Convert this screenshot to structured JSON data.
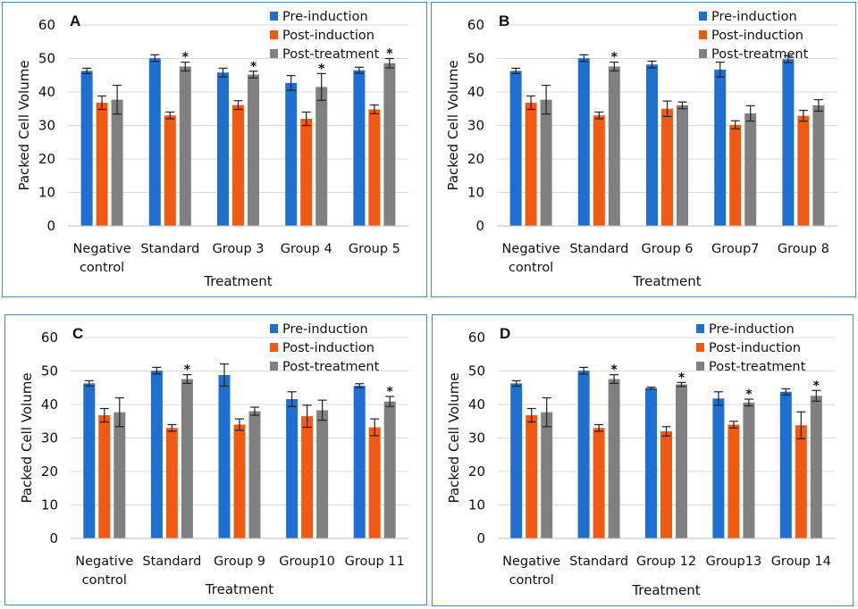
{
  "colors": {
    "pre": "#1f6fd1",
    "post_ind": "#f15a13",
    "post_treat": "#808080",
    "border": "#4f88a8",
    "grid": "#d9d9d9"
  },
  "chart_data": [
    {
      "type": "bar",
      "panel": "A",
      "ylabel": "Packed Cell Volume",
      "xlabel": "Treatment",
      "ylim": [
        0,
        60
      ],
      "yticks": [
        "0",
        "10",
        "20",
        "30",
        "40",
        "50",
        "60"
      ],
      "grid": true,
      "legend": "top-right",
      "categories": [
        [
          "Negative",
          "control"
        ],
        [
          "Standard"
        ],
        [
          "Group 3"
        ],
        [
          "Group 4"
        ],
        [
          "Group 5"
        ]
      ],
      "series": [
        {
          "name": "Pre-induction",
          "values": [
            46.3,
            50.1,
            45.8,
            42.7,
            46.5
          ],
          "errors": [
            0.8,
            1.0,
            1.3,
            2.2,
            0.9
          ]
        },
        {
          "name": "Post-induction",
          "values": [
            36.8,
            33.0,
            36.1,
            32.0,
            34.8
          ],
          "errors": [
            2.0,
            1.0,
            1.3,
            2.0,
            1.3
          ]
        },
        {
          "name": "Post-treatment",
          "values": [
            37.7,
            47.6,
            45.2,
            41.5,
            48.6
          ],
          "errors": [
            4.3,
            1.3,
            1.0,
            4.0,
            1.4
          ],
          "significance": [
            "",
            "*",
            "*",
            "*",
            "*"
          ]
        }
      ]
    },
    {
      "type": "bar",
      "panel": "B",
      "ylabel": "Packed Cell Volume",
      "xlabel": "Treatment",
      "ylim": [
        0,
        60
      ],
      "yticks": [
        "0",
        "10",
        "20",
        "30",
        "40",
        "50",
        "60"
      ],
      "grid": true,
      "legend": "top-right",
      "categories": [
        [
          "Negative",
          "control"
        ],
        [
          "Standard"
        ],
        [
          "Group 6"
        ],
        [
          "Group7"
        ],
        [
          "Group 8"
        ]
      ],
      "series": [
        {
          "name": "Pre-induction",
          "values": [
            46.3,
            50.1,
            48.2,
            46.7,
            49.8
          ],
          "errors": [
            0.8,
            1.0,
            1.0,
            2.2,
            1.0
          ]
        },
        {
          "name": "Post-induction",
          "values": [
            36.8,
            33.0,
            35.0,
            30.2,
            32.9
          ],
          "errors": [
            2.0,
            1.0,
            2.3,
            1.2,
            1.6
          ]
        },
        {
          "name": "Post-treatment",
          "values": [
            37.7,
            47.6,
            36.0,
            33.6,
            36.0
          ],
          "errors": [
            4.3,
            1.3,
            1.0,
            2.3,
            1.7
          ],
          "significance": [
            "",
            "*",
            "",
            "",
            ""
          ]
        }
      ]
    },
    {
      "type": "bar",
      "panel": "C",
      "ylabel": "Packed Cell Volume",
      "xlabel": "Treatment",
      "ylim": [
        0,
        60
      ],
      "yticks": [
        "0",
        "10",
        "20",
        "30",
        "40",
        "50",
        "60"
      ],
      "grid": true,
      "legend": "top-right",
      "categories": [
        [
          "Negative",
          "control"
        ],
        [
          "Standard"
        ],
        [
          "Group 9"
        ],
        [
          "Group10"
        ],
        [
          "Group 11"
        ]
      ],
      "series": [
        {
          "name": "Pre-induction",
          "values": [
            46.3,
            50.1,
            48.8,
            41.6,
            45.6
          ],
          "errors": [
            0.8,
            1.0,
            3.3,
            2.2,
            0.6
          ]
        },
        {
          "name": "Post-induction",
          "values": [
            36.8,
            33.0,
            34.0,
            36.5,
            33.2
          ],
          "errors": [
            2.0,
            1.0,
            1.7,
            3.3,
            2.5
          ]
        },
        {
          "name": "Post-treatment",
          "values": [
            37.7,
            47.6,
            38.0,
            38.3,
            40.9
          ],
          "errors": [
            4.3,
            1.3,
            1.2,
            3.0,
            1.5
          ],
          "significance": [
            "",
            "*",
            "",
            "",
            "*"
          ]
        }
      ]
    },
    {
      "type": "bar",
      "panel": "D",
      "ylabel": "Packed Cell Volume",
      "xlabel": "Treatment",
      "ylim": [
        0,
        60
      ],
      "yticks": [
        "0",
        "10",
        "20",
        "30",
        "40",
        "50",
        "60"
      ],
      "grid": true,
      "legend": "top-right",
      "categories": [
        [
          "Negative",
          "control"
        ],
        [
          "Standard"
        ],
        [
          "Group 12"
        ],
        [
          "Group13"
        ],
        [
          "Group 14"
        ]
      ],
      "series": [
        {
          "name": "Pre-induction",
          "values": [
            46.3,
            50.1,
            44.9,
            41.8,
            43.8
          ],
          "errors": [
            0.8,
            1.0,
            0.3,
            2.0,
            0.9
          ]
        },
        {
          "name": "Post-induction",
          "values": [
            36.8,
            33.0,
            32.0,
            34.0,
            33.8
          ],
          "errors": [
            2.0,
            1.0,
            1.4,
            1.0,
            4.0
          ]
        },
        {
          "name": "Post-treatment",
          "values": [
            37.7,
            47.6,
            46.0,
            40.6,
            42.6
          ],
          "errors": [
            4.3,
            1.3,
            0.6,
            1.0,
            1.6
          ],
          "significance": [
            "",
            "*",
            "*",
            "*",
            "*"
          ]
        }
      ]
    }
  ]
}
